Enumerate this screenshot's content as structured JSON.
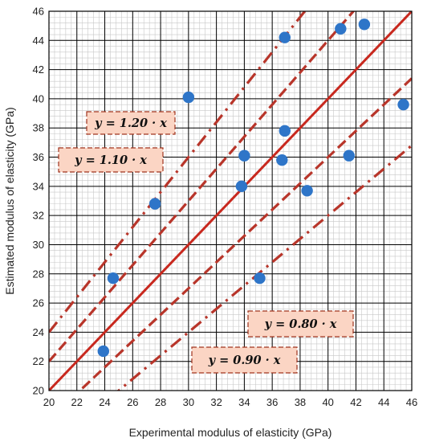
{
  "chart_data": {
    "type": "scatter",
    "title": "",
    "xlabel": "Experimental modulus of elasticity (GPa)",
    "ylabel": "Estimated modulus of elasticity (GPa)",
    "xlim": [
      20,
      46
    ],
    "ylim": [
      20,
      46
    ],
    "x_ticks": [
      "20",
      "22",
      "24",
      "26",
      "28",
      "30",
      "32",
      "34",
      "36",
      "38",
      "40",
      "42",
      "44",
      "46"
    ],
    "y_ticks": [
      "20",
      "22",
      "24",
      "26",
      "28",
      "30",
      "32",
      "34",
      "36",
      "38",
      "40",
      "42",
      "44",
      "46"
    ],
    "grid": true,
    "minor_grid": true,
    "points": {
      "x": [
        23.9,
        24.6,
        27.6,
        30.0,
        33.8,
        34.0,
        35.1,
        36.7,
        36.9,
        36.9,
        38.5,
        40.9,
        41.5,
        42.6,
        45.4
      ],
      "y": [
        22.7,
        27.7,
        32.8,
        40.1,
        34.0,
        36.1,
        27.7,
        35.8,
        37.8,
        44.2,
        33.7,
        44.8,
        36.1,
        45.1,
        39.6
      ],
      "color": "#2e75c8"
    },
    "reference_lines": [
      {
        "label": "y = 1.20 · x",
        "slope": 1.2,
        "style": "dash-dot",
        "color": "#b8352a"
      },
      {
        "label": "y = 1.10 · x",
        "slope": 1.1,
        "style": "dashed",
        "color": "#b8352a"
      },
      {
        "label": "",
        "slope": 1.0,
        "style": "solid",
        "color": "#c8281e"
      },
      {
        "label": "y = 0.90 · x",
        "slope": 0.9,
        "style": "dashed",
        "color": "#b8352a"
      },
      {
        "label": "y = 0.80 · x",
        "slope": 0.8,
        "style": "dash-dot",
        "color": "#b8352a"
      }
    ],
    "grid_colors": {
      "major": "#000000",
      "minor": "#c8c8c8"
    },
    "label_box_color": "#fbd5c4"
  }
}
